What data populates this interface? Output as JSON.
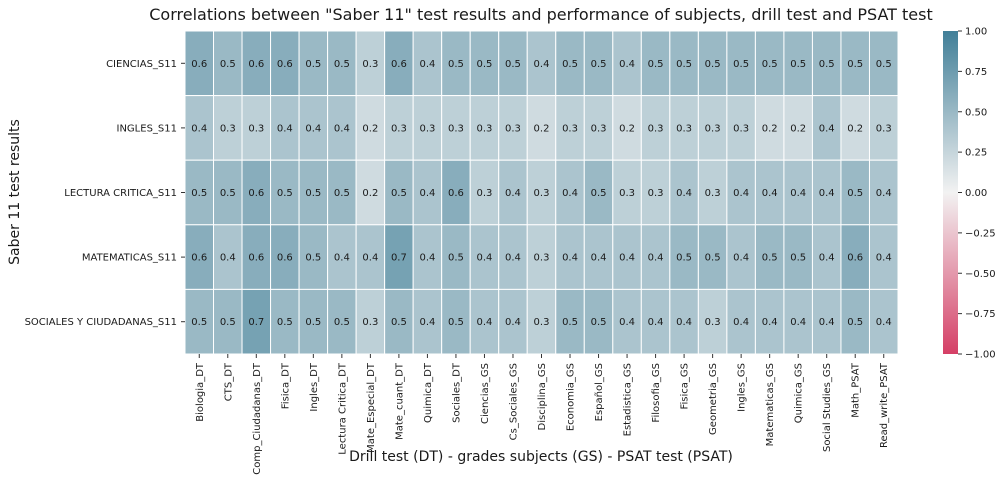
{
  "chart_data": {
    "type": "heatmap",
    "title": "Correlations between \"Saber 11\" test results and performance of subjects, drill test and PSAT test",
    "xlabel": "Drill test (DT) - grades subjects (GS) - PSAT test (PSAT)",
    "ylabel": "Saber 11 test results",
    "x_categories": [
      "Biologia_DT",
      "CTS_DT",
      "Comp_Ciudadanas_DT",
      "Fisica_DT",
      "Ingles_DT",
      "Lectura Critica_DT",
      "Mate_Especial_DT",
      "Mate_cuant_DT",
      "Quimica_DT",
      "Sociales_DT",
      "Ciencias_GS",
      "Cs_Sociales_GS",
      "Disciplina_GS",
      "Economia_GS",
      "Español_GS",
      "Estadistica_GS",
      "Filosofia_GS",
      "Fisica_GS",
      "Geometria_GS",
      "Ingles_GS",
      "Matematicas_GS",
      "Quimica_GS",
      "Social Studies_GS",
      "Math_PSAT",
      "Read_write_PSAT"
    ],
    "y_categories": [
      "CIENCIAS_S11",
      "INGLES_S11",
      "LECTURA CRITICA_S11",
      "MATEMATICAS_S11",
      "SOCIALES Y CIUDADANAS_S11"
    ],
    "values": [
      [
        0.6,
        0.5,
        0.6,
        0.6,
        0.5,
        0.5,
        0.3,
        0.6,
        0.4,
        0.5,
        0.5,
        0.5,
        0.4,
        0.5,
        0.5,
        0.4,
        0.5,
        0.5,
        0.5,
        0.5,
        0.5,
        0.5,
        0.5,
        0.5,
        0.5
      ],
      [
        0.4,
        0.3,
        0.3,
        0.4,
        0.4,
        0.4,
        0.2,
        0.3,
        0.3,
        0.3,
        0.3,
        0.3,
        0.2,
        0.3,
        0.3,
        0.2,
        0.3,
        0.3,
        0.3,
        0.3,
        0.2,
        0.2,
        0.4,
        0.2,
        0.3
      ],
      [
        0.5,
        0.5,
        0.6,
        0.5,
        0.5,
        0.5,
        0.2,
        0.5,
        0.4,
        0.6,
        0.3,
        0.4,
        0.3,
        0.4,
        0.5,
        0.3,
        0.3,
        0.4,
        0.3,
        0.4,
        0.4,
        0.4,
        0.4,
        0.5,
        0.4
      ],
      [
        0.6,
        0.4,
        0.6,
        0.6,
        0.5,
        0.4,
        0.4,
        0.7,
        0.4,
        0.5,
        0.4,
        0.4,
        0.3,
        0.4,
        0.4,
        0.4,
        0.4,
        0.5,
        0.5,
        0.4,
        0.5,
        0.5,
        0.4,
        0.6,
        0.4
      ],
      [
        0.5,
        0.5,
        0.7,
        0.5,
        0.5,
        0.5,
        0.3,
        0.5,
        0.4,
        0.5,
        0.4,
        0.4,
        0.3,
        0.5,
        0.5,
        0.4,
        0.4,
        0.4,
        0.3,
        0.4,
        0.4,
        0.4,
        0.4,
        0.5,
        0.4
      ]
    ],
    "colorbar": {
      "min": -1.0,
      "max": 1.0,
      "ticks": [
        "1.00",
        "0.75",
        "0.50",
        "0.25",
        "0.00",
        "−0.25",
        "−0.50",
        "−0.75",
        "−1.00"
      ],
      "tick_values": [
        1.0,
        0.75,
        0.5,
        0.25,
        0.0,
        -0.25,
        -0.5,
        -0.75,
        -1.0
      ],
      "color_low": "#d53f66",
      "color_mid": "#f2f2f2",
      "color_high": "#417f98"
    }
  }
}
